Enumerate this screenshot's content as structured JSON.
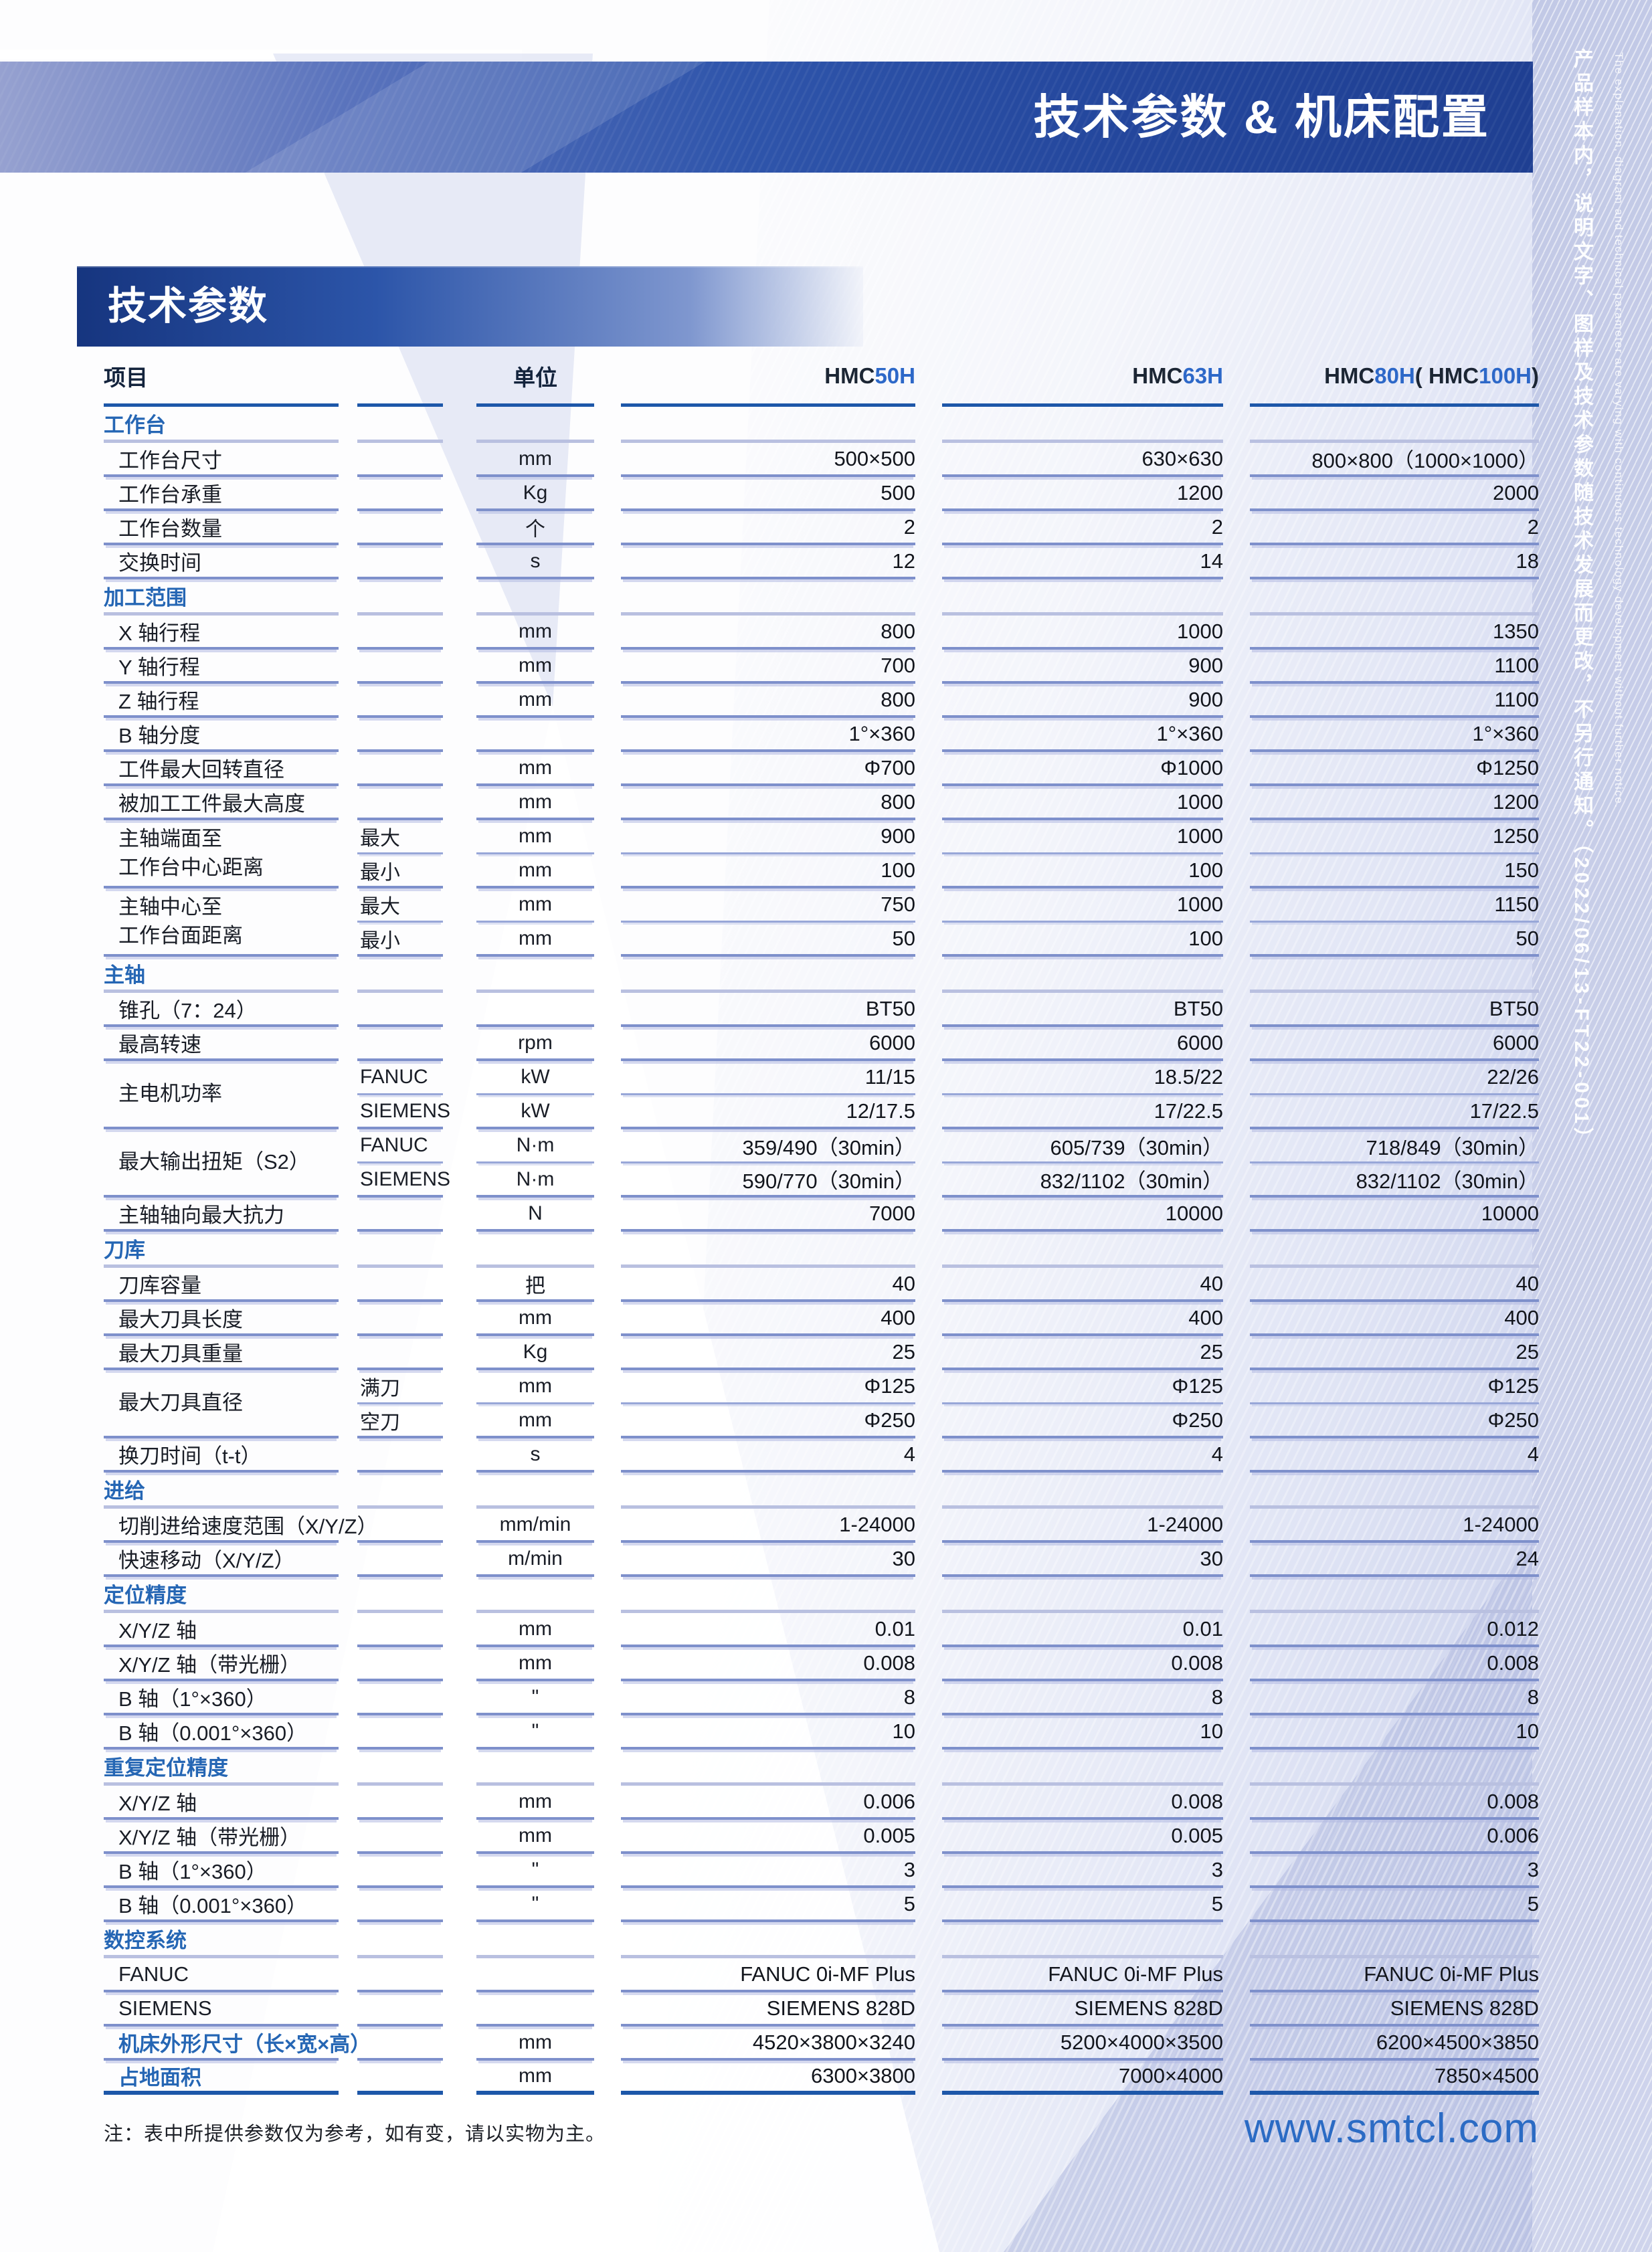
{
  "page": {
    "banner_title": "技术参数 & 机床配置",
    "section_bar_title": "技术参数",
    "side_note_cn": "产品样本内，说明文字、图样及技术参数随技术发展而更改，不另行通知。（2022/06/13-FT22-001）",
    "side_note_en": "The explanation, diagram and technical parameter are varying with continuous technology development without further notice.",
    "footnote": "注：表中所提供参数仅为参考，如有变，请以实物为主。",
    "website": "www.smtcl.com"
  },
  "colors": {
    "banner_blue": "#24479d",
    "section_blue": "#2566b4",
    "model_blue": "#2d68c8",
    "header_rule_blue": "#1d57a9",
    "row_rule_blue": "#7e90cb",
    "section_rule_lavender": "#b9c0e0",
    "side_strip_lavender": "#c6cce8",
    "website_blue": "#2b6bc4"
  },
  "table": {
    "headers": {
      "item": "项目",
      "unit": "单位",
      "models": [
        [
          {
            "t": "HMC ",
            "b": false
          },
          {
            "t": "50H",
            "b": true
          }
        ],
        [
          {
            "t": "HMC ",
            "b": false
          },
          {
            "t": "63H",
            "b": true
          }
        ],
        [
          {
            "t": "HMC ",
            "b": false
          },
          {
            "t": "80H",
            "b": true
          },
          {
            "t": " ( HMC ",
            "b": false
          },
          {
            "t": "100H",
            "b": true
          },
          {
            "t": " )",
            "b": false
          }
        ]
      ]
    },
    "rows": [
      {
        "section": "工作台"
      },
      {
        "label": "工作台尺寸",
        "unit": "mm",
        "values": [
          "500×500",
          "630×630",
          "800×800（1000×1000）"
        ]
      },
      {
        "label": "工作台承重",
        "unit": "Kg",
        "values": [
          "500",
          "1200",
          "2000"
        ]
      },
      {
        "label": "工作台数量",
        "unit": "个",
        "values": [
          "2",
          "2",
          "2"
        ]
      },
      {
        "label": "交换时间",
        "unit": "s",
        "values": [
          "12",
          "14",
          "18"
        ]
      },
      {
        "section": "加工范围"
      },
      {
        "label": "X 轴行程",
        "unit": "mm",
        "values": [
          "800",
          "1000",
          "1350"
        ]
      },
      {
        "label": "Y 轴行程",
        "unit": "mm",
        "values": [
          "700",
          "900",
          "1100"
        ]
      },
      {
        "label": "Z 轴行程",
        "unit": "mm",
        "values": [
          "800",
          "900",
          "1100"
        ]
      },
      {
        "label": "B 轴分度",
        "unit": "",
        "values": [
          "1°×360",
          "1°×360",
          "1°×360"
        ]
      },
      {
        "label": "工件最大回转直径",
        "unit": "mm",
        "values": [
          "Φ700",
          "Φ1000",
          "Φ1250"
        ]
      },
      {
        "label": "被加工工件最大高度",
        "unit": "mm",
        "values": [
          "800",
          "1000",
          "1200"
        ]
      },
      {
        "label": [
          "主轴端面至",
          "工作台中心距离"
        ],
        "rows": [
          {
            "sub": "最大",
            "unit": "mm",
            "values": [
              "900",
              "1000",
              "1250"
            ]
          },
          {
            "sub": "最小",
            "unit": "mm",
            "values": [
              "100",
              "100",
              "150"
            ]
          }
        ]
      },
      {
        "label": [
          "主轴中心至",
          "工作台面距离"
        ],
        "rows": [
          {
            "sub": "最大",
            "unit": "mm",
            "values": [
              "750",
              "1000",
              "1150"
            ]
          },
          {
            "sub": "最小",
            "unit": "mm",
            "values": [
              "50",
              "100",
              "50"
            ]
          }
        ]
      },
      {
        "section": "主轴"
      },
      {
        "label": "锥孔（7：24）",
        "unit": "",
        "values": [
          "BT50",
          "BT50",
          "BT50"
        ]
      },
      {
        "label": "最高转速",
        "unit": "rpm",
        "values": [
          "6000",
          "6000",
          "6000"
        ]
      },
      {
        "label": [
          "主电机功率"
        ],
        "rows": [
          {
            "sub": "FANUC",
            "unit": "kW",
            "values": [
              "11/15",
              "18.5/22",
              "22/26"
            ]
          },
          {
            "sub": "SIEMENS",
            "unit": "kW",
            "values": [
              "12/17.5",
              "17/22.5",
              "17/22.5"
            ]
          }
        ]
      },
      {
        "label": [
          "最大输出扭矩（S2）"
        ],
        "rows": [
          {
            "sub": "FANUC",
            "unit": "N·m",
            "values": [
              "359/490（30min）",
              "605/739（30min）",
              "718/849（30min）"
            ]
          },
          {
            "sub": "SIEMENS",
            "unit": "N·m",
            "values": [
              "590/770（30min）",
              "832/1102（30min）",
              "832/1102（30min）"
            ]
          }
        ]
      },
      {
        "label": "主轴轴向最大抗力",
        "unit": "N",
        "values": [
          "7000",
          "10000",
          "10000"
        ]
      },
      {
        "section": "刀库"
      },
      {
        "label": "刀库容量",
        "unit": "把",
        "values": [
          "40",
          "40",
          "40"
        ]
      },
      {
        "label": "最大刀具长度",
        "unit": "mm",
        "values": [
          "400",
          "400",
          "400"
        ]
      },
      {
        "label": "最大刀具重量",
        "unit": "Kg",
        "values": [
          "25",
          "25",
          "25"
        ]
      },
      {
        "label": [
          "最大刀具直径"
        ],
        "rows": [
          {
            "sub": "满刀",
            "unit": "mm",
            "values": [
              "Φ125",
              "Φ125",
              "Φ125"
            ]
          },
          {
            "sub": "空刀",
            "unit": "mm",
            "values": [
              "Φ250",
              "Φ250",
              "Φ250"
            ]
          }
        ]
      },
      {
        "label": "换刀时间（t-t）",
        "unit": "s",
        "values": [
          "4",
          "4",
          "4"
        ]
      },
      {
        "section": "进给"
      },
      {
        "label": "切削进给速度范围（X/Y/Z）",
        "unit": "mm/min",
        "values": [
          "1-24000",
          "1-24000",
          "1-24000"
        ]
      },
      {
        "label": "快速移动（X/Y/Z）",
        "unit": "m/min",
        "values": [
          "30",
          "30",
          "24"
        ]
      },
      {
        "section": "定位精度"
      },
      {
        "label": "X/Y/Z 轴",
        "unit": "mm",
        "values": [
          "0.01",
          "0.01",
          "0.012"
        ]
      },
      {
        "label": "X/Y/Z 轴（带光栅）",
        "unit": "mm",
        "values": [
          "0.008",
          "0.008",
          "0.008"
        ]
      },
      {
        "label": "B 轴（1°×360）",
        "unit": "\"",
        "values": [
          "8",
          "8",
          "8"
        ]
      },
      {
        "label": "B 轴（0.001°×360）",
        "unit": "\"",
        "values": [
          "10",
          "10",
          "10"
        ]
      },
      {
        "section": "重复定位精度"
      },
      {
        "label": "X/Y/Z 轴",
        "unit": "mm",
        "values": [
          "0.006",
          "0.008",
          "0.008"
        ]
      },
      {
        "label": "X/Y/Z 轴（带光栅）",
        "unit": "mm",
        "values": [
          "0.005",
          "0.005",
          "0.006"
        ]
      },
      {
        "label": "B 轴（1°×360）",
        "unit": "\"",
        "values": [
          "3",
          "3",
          "3"
        ]
      },
      {
        "label": "B 轴（0.001°×360）",
        "unit": "\"",
        "values": [
          "5",
          "5",
          "5"
        ]
      },
      {
        "section": "数控系统"
      },
      {
        "label": "FANUC",
        "unit": "",
        "values": [
          "FANUC 0i-MF Plus",
          "FANUC 0i-MF Plus",
          "FANUC 0i-MF Plus"
        ]
      },
      {
        "label": "SIEMENS",
        "unit": "",
        "values": [
          "SIEMENS 828D",
          "SIEMENS 828D",
          "SIEMENS 828D"
        ]
      },
      {
        "label": "机床外形尺寸（长×宽×高）",
        "blue": true,
        "unit": "mm",
        "values": [
          "4520×3800×3240",
          "5200×4000×3500",
          "6200×4500×3850"
        ]
      },
      {
        "label": "占地面积",
        "blue": true,
        "unit": "mm",
        "values": [
          "6300×3800",
          "7000×4000",
          "7850×4500"
        ],
        "last": true
      }
    ]
  }
}
